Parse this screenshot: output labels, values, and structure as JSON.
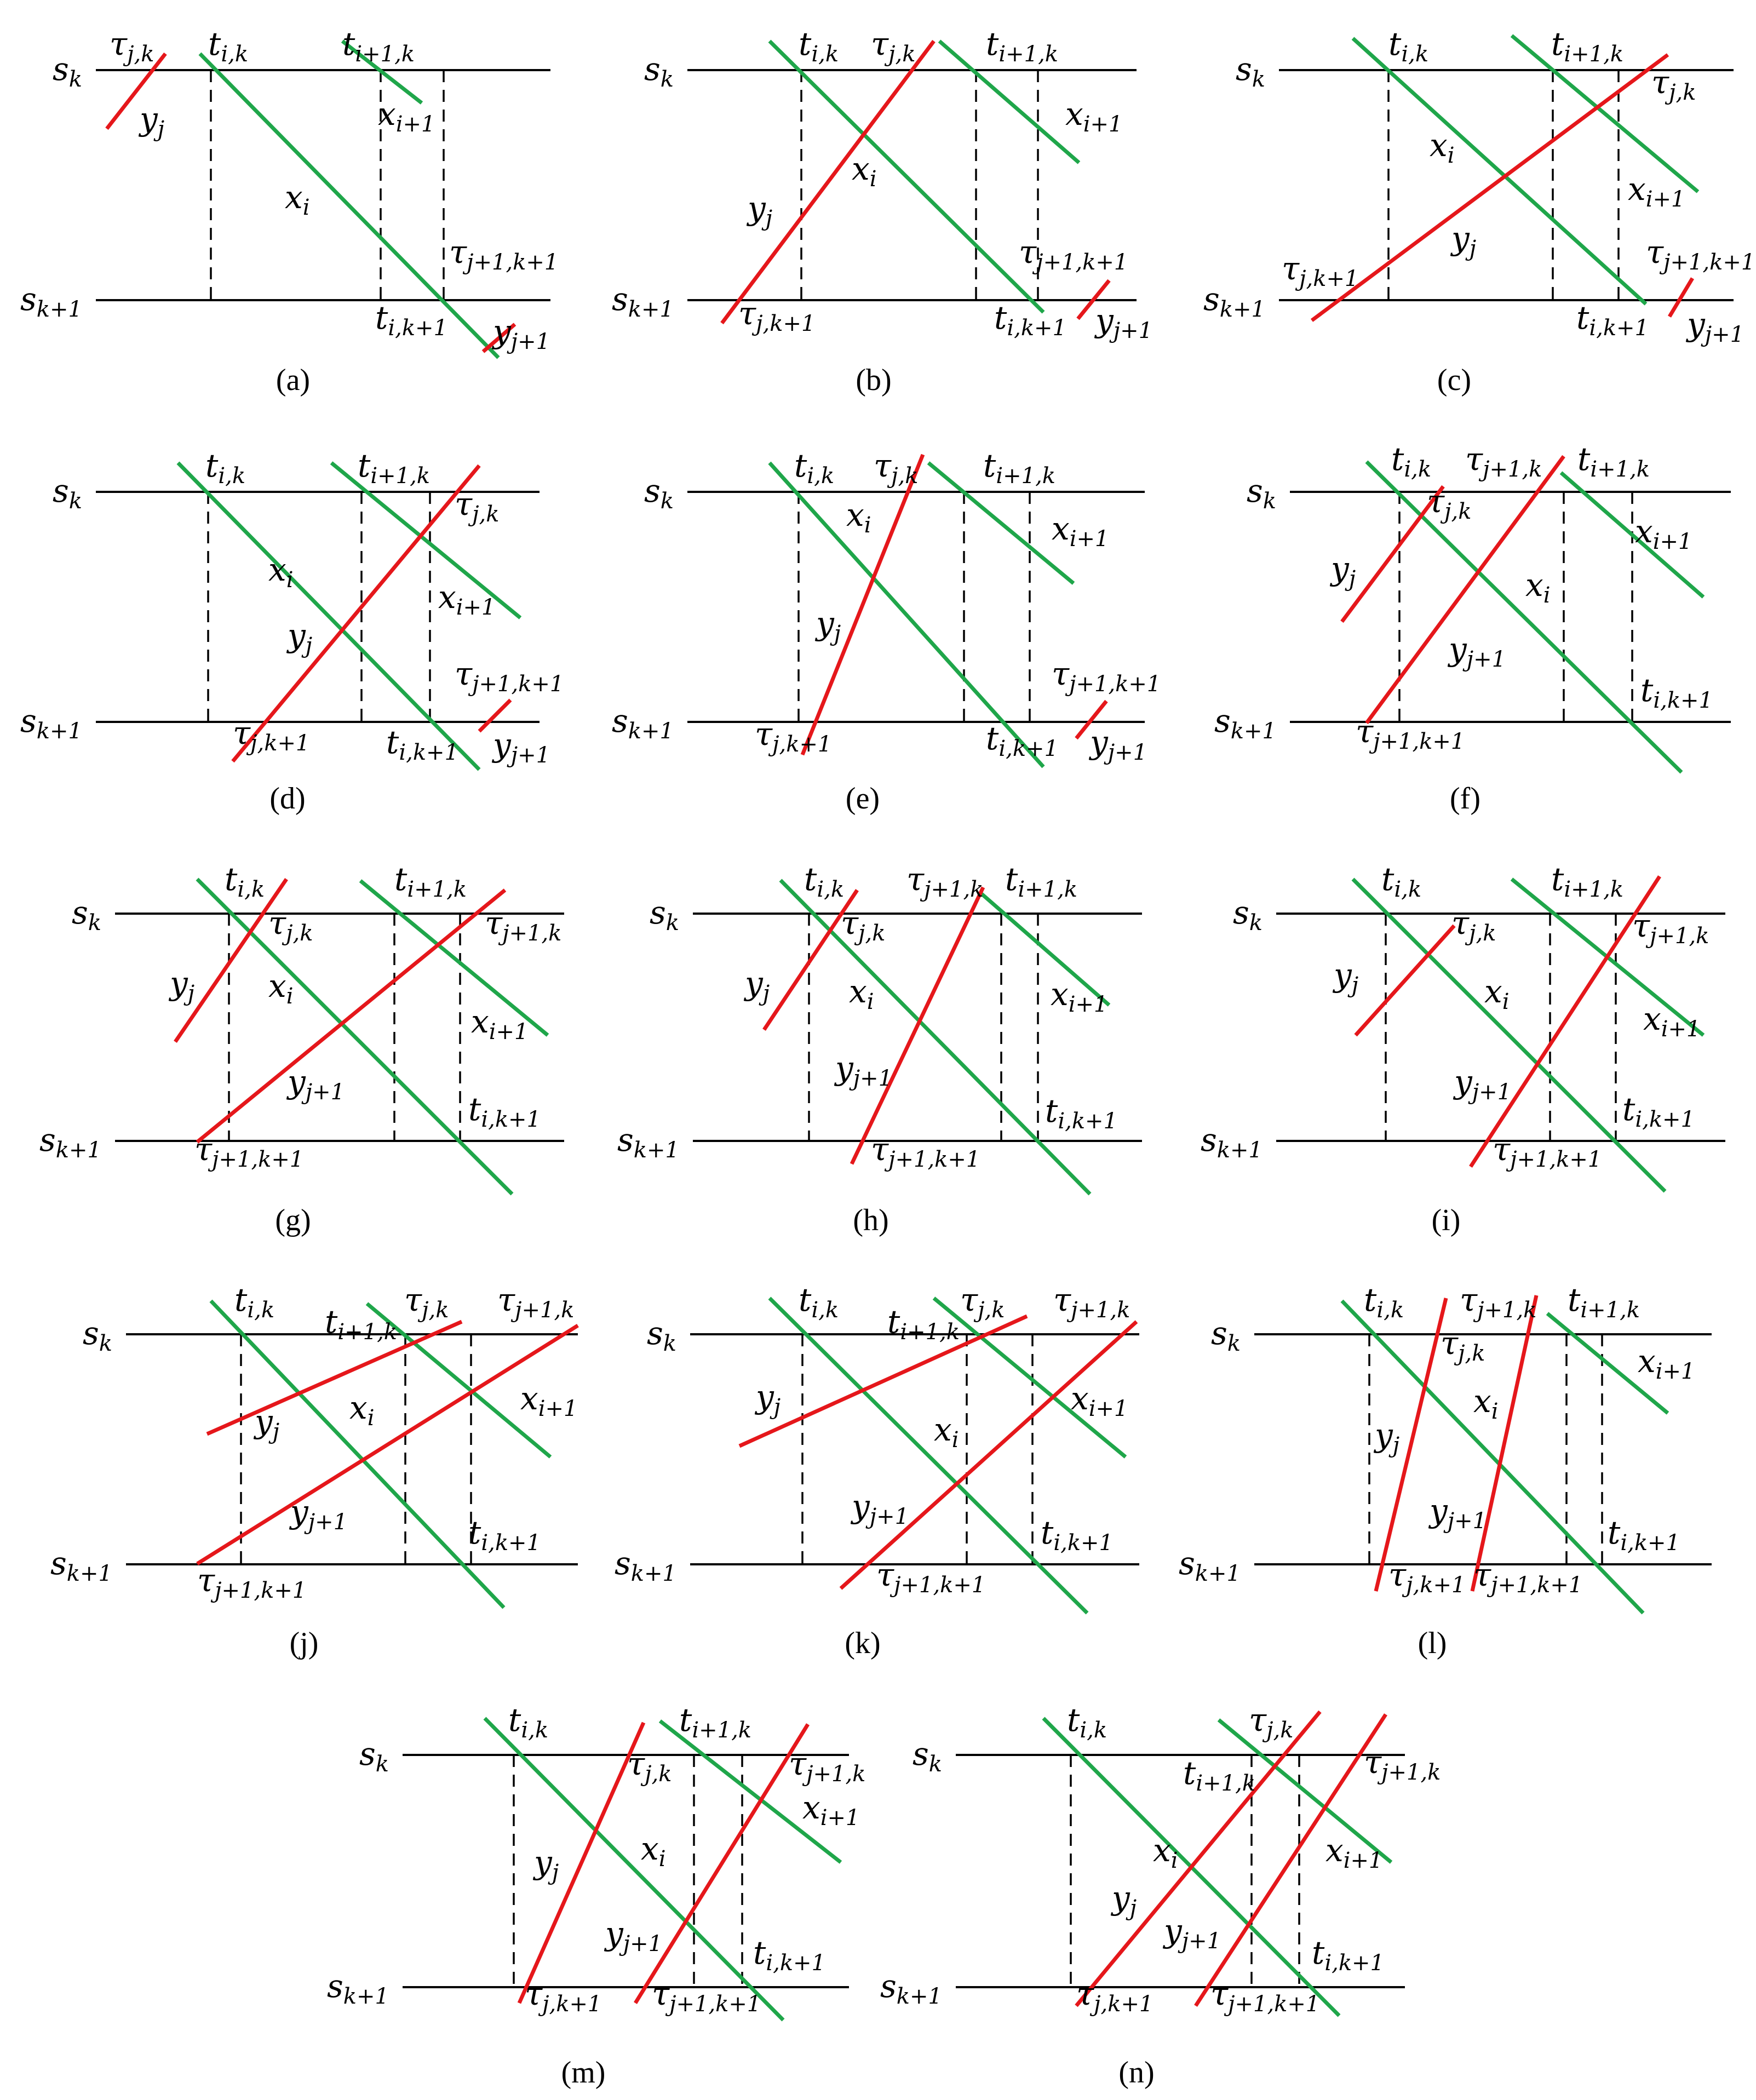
{
  "colors": {
    "train_x": "#1FA64A",
    "train_y": "#E5171B",
    "station": "#000000",
    "dash": "#000000"
  },
  "station_labels": {
    "top": "s",
    "top_sub": "k",
    "bottom": "s",
    "bottom_sub": "k+1"
  },
  "panels": [
    {
      "caption": "(a)",
      "labels": [
        {
          "base": "τ",
          "sub": "j,k"
        },
        {
          "base": "t",
          "sub": "i,k"
        },
        {
          "base": "t",
          "sub": "i+1,k"
        },
        {
          "base": "y",
          "sub": "j"
        },
        {
          "base": "x",
          "sub": "i+1"
        },
        {
          "base": "x",
          "sub": "i"
        },
        {
          "base": "τ",
          "sub": "j+1,k+1"
        },
        {
          "base": "t",
          "sub": "i,k+1"
        },
        {
          "base": "y",
          "sub": "j+1"
        }
      ]
    },
    {
      "caption": "(b)",
      "labels": [
        {
          "base": "t",
          "sub": "i,k"
        },
        {
          "base": "τ",
          "sub": "j,k"
        },
        {
          "base": "t",
          "sub": "i+1,k"
        },
        {
          "base": "x",
          "sub": "i+1"
        },
        {
          "base": "x",
          "sub": "i"
        },
        {
          "base": "y",
          "sub": "j"
        },
        {
          "base": "τ",
          "sub": "j+1,k+1"
        },
        {
          "base": "τ",
          "sub": "j,k+1"
        },
        {
          "base": "t",
          "sub": "i,k+1"
        },
        {
          "base": "y",
          "sub": "j+1"
        }
      ]
    },
    {
      "caption": "(c)",
      "labels": [
        {
          "base": "t",
          "sub": "i,k"
        },
        {
          "base": "t",
          "sub": "i+1,k"
        },
        {
          "base": "τ",
          "sub": "j,k"
        },
        {
          "base": "x",
          "sub": "i"
        },
        {
          "base": "x",
          "sub": "i+1"
        },
        {
          "base": "y",
          "sub": "j"
        },
        {
          "base": "τ",
          "sub": "j,k+1"
        },
        {
          "base": "τ",
          "sub": "j+1,k+1"
        },
        {
          "base": "t",
          "sub": "i,k+1"
        },
        {
          "base": "y",
          "sub": "j+1"
        }
      ]
    },
    {
      "caption": "(d)",
      "labels": [
        {
          "base": "t",
          "sub": "i,k"
        },
        {
          "base": "t",
          "sub": "i+1,k"
        },
        {
          "base": "τ",
          "sub": "j,k"
        },
        {
          "base": "x",
          "sub": "i"
        },
        {
          "base": "x",
          "sub": "i+1"
        },
        {
          "base": "y",
          "sub": "j"
        },
        {
          "base": "τ",
          "sub": "j+1,k+1"
        },
        {
          "base": "τ",
          "sub": "j,k+1"
        },
        {
          "base": "t",
          "sub": "i,k+1"
        },
        {
          "base": "y",
          "sub": "j+1"
        }
      ]
    },
    {
      "caption": "(e)",
      "labels": [
        {
          "base": "t",
          "sub": "i,k"
        },
        {
          "base": "τ",
          "sub": "j,k"
        },
        {
          "base": "t",
          "sub": "i+1,k"
        },
        {
          "base": "x",
          "sub": "i"
        },
        {
          "base": "x",
          "sub": "i+1"
        },
        {
          "base": "y",
          "sub": "j"
        },
        {
          "base": "τ",
          "sub": "j+1,k+1"
        },
        {
          "base": "τ",
          "sub": "j,k+1"
        },
        {
          "base": "t",
          "sub": "i,k+1"
        },
        {
          "base": "y",
          "sub": "j+1"
        }
      ]
    },
    {
      "caption": "(f)",
      "labels": [
        {
          "base": "t",
          "sub": "i,k"
        },
        {
          "base": "τ",
          "sub": "j+1,k"
        },
        {
          "base": "t",
          "sub": "i+1,k"
        },
        {
          "base": "τ",
          "sub": "j,k"
        },
        {
          "base": "x",
          "sub": "i+1"
        },
        {
          "base": "y",
          "sub": "j"
        },
        {
          "base": "x",
          "sub": "i"
        },
        {
          "base": "y",
          "sub": "j+1"
        },
        {
          "base": "t",
          "sub": "i,k+1"
        },
        {
          "base": "τ",
          "sub": "j+1,k+1"
        }
      ]
    },
    {
      "caption": "(g)",
      "labels": [
        {
          "base": "t",
          "sub": "i,k"
        },
        {
          "base": "t",
          "sub": "i+1,k"
        },
        {
          "base": "τ",
          "sub": "j,k"
        },
        {
          "base": "τ",
          "sub": "j+1,k"
        },
        {
          "base": "y",
          "sub": "j"
        },
        {
          "base": "x",
          "sub": "i"
        },
        {
          "base": "x",
          "sub": "i+1"
        },
        {
          "base": "y",
          "sub": "j+1"
        },
        {
          "base": "t",
          "sub": "i,k+1"
        },
        {
          "base": "τ",
          "sub": "j+1,k+1"
        }
      ]
    },
    {
      "caption": "(h)",
      "labels": [
        {
          "base": "t",
          "sub": "i,k"
        },
        {
          "base": "τ",
          "sub": "j+1,k"
        },
        {
          "base": "t",
          "sub": "i+1,k"
        },
        {
          "base": "τ",
          "sub": "j,k"
        },
        {
          "base": "y",
          "sub": "j"
        },
        {
          "base": "x",
          "sub": "i"
        },
        {
          "base": "x",
          "sub": "i+1"
        },
        {
          "base": "y",
          "sub": "j+1"
        },
        {
          "base": "t",
          "sub": "i,k+1"
        },
        {
          "base": "τ",
          "sub": "j+1,k+1"
        }
      ]
    },
    {
      "caption": "(i)",
      "labels": [
        {
          "base": "t",
          "sub": "i,k"
        },
        {
          "base": "t",
          "sub": "i+1,k"
        },
        {
          "base": "τ",
          "sub": "j,k"
        },
        {
          "base": "τ",
          "sub": "j+1,k"
        },
        {
          "base": "y",
          "sub": "j"
        },
        {
          "base": "x",
          "sub": "i"
        },
        {
          "base": "x",
          "sub": "i+1"
        },
        {
          "base": "y",
          "sub": "j+1"
        },
        {
          "base": "t",
          "sub": "i,k+1"
        },
        {
          "base": "τ",
          "sub": "j+1,k+1"
        }
      ]
    },
    {
      "caption": "(j)",
      "labels": [
        {
          "base": "t",
          "sub": "i,k"
        },
        {
          "base": "τ",
          "sub": "j,k"
        },
        {
          "base": "τ",
          "sub": "j+1,k"
        },
        {
          "base": "t",
          "sub": "i+1,k"
        },
        {
          "base": "y",
          "sub": "j"
        },
        {
          "base": "x",
          "sub": "i"
        },
        {
          "base": "x",
          "sub": "i+1"
        },
        {
          "base": "y",
          "sub": "j+1"
        },
        {
          "base": "t",
          "sub": "i,k+1"
        },
        {
          "base": "τ",
          "sub": "j+1,k+1"
        }
      ]
    },
    {
      "caption": "(k)",
      "labels": [
        {
          "base": "t",
          "sub": "i,k"
        },
        {
          "base": "τ",
          "sub": "j,k"
        },
        {
          "base": "τ",
          "sub": "j+1,k"
        },
        {
          "base": "t",
          "sub": "i+1,k"
        },
        {
          "base": "y",
          "sub": "j"
        },
        {
          "base": "x",
          "sub": "i+1"
        },
        {
          "base": "x",
          "sub": "i"
        },
        {
          "base": "y",
          "sub": "j+1"
        },
        {
          "base": "t",
          "sub": "i,k+1"
        },
        {
          "base": "τ",
          "sub": "j+1,k+1"
        }
      ]
    },
    {
      "caption": "(l)",
      "labels": [
        {
          "base": "t",
          "sub": "i,k"
        },
        {
          "base": "τ",
          "sub": "j+1,k"
        },
        {
          "base": "t",
          "sub": "i+1,k"
        },
        {
          "base": "τ",
          "sub": "j,k"
        },
        {
          "base": "x",
          "sub": "i+1"
        },
        {
          "base": "x",
          "sub": "i"
        },
        {
          "base": "y",
          "sub": "j"
        },
        {
          "base": "y",
          "sub": "j+1"
        },
        {
          "base": "t",
          "sub": "i,k+1"
        },
        {
          "base": "τ",
          "sub": "j,k+1"
        },
        {
          "base": "τ",
          "sub": "j+1,k+1"
        }
      ]
    },
    {
      "caption": "(m)",
      "labels": [
        {
          "base": "t",
          "sub": "i,k"
        },
        {
          "base": "t",
          "sub": "i+1,k"
        },
        {
          "base": "τ",
          "sub": "j,k"
        },
        {
          "base": "τ",
          "sub": "j+1,k"
        },
        {
          "base": "x",
          "sub": "i+1"
        },
        {
          "base": "y",
          "sub": "j"
        },
        {
          "base": "x",
          "sub": "i"
        },
        {
          "base": "y",
          "sub": "j+1"
        },
        {
          "base": "t",
          "sub": "i,k+1"
        },
        {
          "base": "τ",
          "sub": "j,k+1"
        },
        {
          "base": "τ",
          "sub": "j+1,k+1"
        }
      ]
    },
    {
      "caption": "(n)",
      "labels": [
        {
          "base": "t",
          "sub": "i,k"
        },
        {
          "base": "τ",
          "sub": "j,k"
        },
        {
          "base": "t",
          "sub": "i+1,k"
        },
        {
          "base": "τ",
          "sub": "j+1,k"
        },
        {
          "base": "x",
          "sub": "i"
        },
        {
          "base": "x",
          "sub": "i+1"
        },
        {
          "base": "y",
          "sub": "j"
        },
        {
          "base": "y",
          "sub": "j+1"
        },
        {
          "base": "t",
          "sub": "i,k+1"
        },
        {
          "base": "τ",
          "sub": "j,k+1"
        },
        {
          "base": "τ",
          "sub": "j+1,k+1"
        }
      ]
    }
  ]
}
